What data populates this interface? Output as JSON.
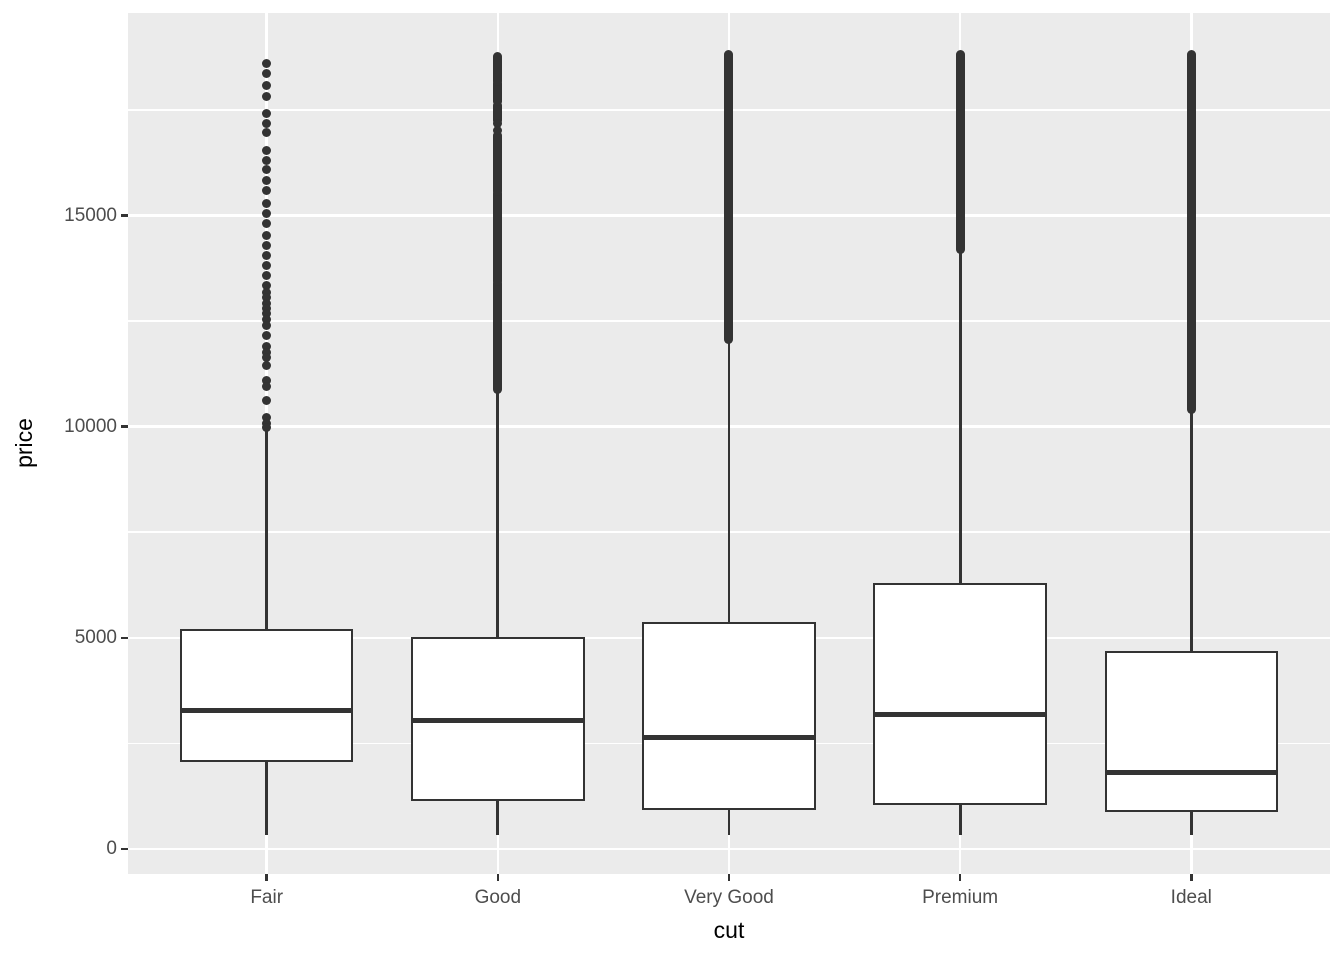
{
  "chart_data": {
    "type": "boxplot",
    "title": "",
    "xlabel": "cut",
    "ylabel": "price",
    "categories": [
      "Fair",
      "Good",
      "Very Good",
      "Premium",
      "Ideal"
    ],
    "y_axis": {
      "major_ticks": [
        {
          "value": 0,
          "label": "0"
        },
        {
          "value": 5000,
          "label": "5000"
        },
        {
          "value": 10000,
          "label": "10000"
        },
        {
          "value": 15000,
          "label": "15000"
        }
      ],
      "minor_ticks": [
        2500,
        7500,
        12500,
        17500
      ],
      "ylim": [
        -600,
        19750
      ]
    },
    "legend": "none",
    "grid": "white-on-gray, major and minor horizontal, major vertical per category",
    "series": [
      {
        "category": "Fair",
        "min": 337,
        "q1": 2050,
        "median": 3282,
        "q3": 5206,
        "whisker_high": 9900,
        "max": 18574,
        "outlier_segments": [],
        "outlier_dots": [
          18600,
          18370,
          18090,
          17830,
          17420,
          17180,
          16960,
          16550,
          16310,
          16080,
          15840,
          15600,
          15290,
          15060,
          14820,
          14540,
          14300,
          14060,
          13830,
          13590,
          13350,
          13190,
          13060,
          12930,
          12800,
          12670,
          12540,
          12400,
          12150,
          11890,
          11760,
          11630,
          11450,
          11100,
          10960,
          10620,
          10210,
          10080,
          9990
        ]
      },
      {
        "category": "Good",
        "min": 327,
        "q1": 1145,
        "median": 3050,
        "q3": 5028,
        "whisker_high": 10845,
        "max": 18788,
        "outlier_segments": [
          [
            10880,
            13390
          ],
          [
            13450,
            15530
          ],
          [
            15580,
            16900
          ],
          [
            17250,
            17600
          ],
          [
            17700,
            18130
          ],
          [
            18180,
            18760
          ]
        ],
        "outlier_dots": [
          17180,
          17005
        ]
      },
      {
        "category": "Very Good",
        "min": 336,
        "q1": 912,
        "median": 2648,
        "q3": 5373,
        "whisker_high": 12030,
        "max": 18818,
        "outlier_segments": [
          [
            12070,
            18818
          ]
        ],
        "outlier_dots": []
      },
      {
        "category": "Premium",
        "min": 326,
        "q1": 1046,
        "median": 3185,
        "q3": 6296,
        "whisker_high": 14165,
        "max": 18823,
        "outlier_segments": [
          [
            14190,
            18823
          ]
        ],
        "outlier_dots": []
      },
      {
        "category": "Ideal",
        "min": 326,
        "q1": 878,
        "median": 1810,
        "q3": 4679,
        "whisker_high": 10375,
        "max": 18806,
        "outlier_segments": [
          [
            10400,
            18806
          ]
        ],
        "outlier_dots": []
      }
    ],
    "colors": {
      "panel_background": "#EBEBEB",
      "gridline": "#FFFFFF",
      "box_border": "#333333",
      "box_fill": "#FFFFFF",
      "median": "#333333",
      "outlier": "#333333",
      "axis_text": "#4D4D4D",
      "axis_title": "#000000",
      "tick_mark": "#333333",
      "figure_background": "#FFFFFF"
    }
  }
}
